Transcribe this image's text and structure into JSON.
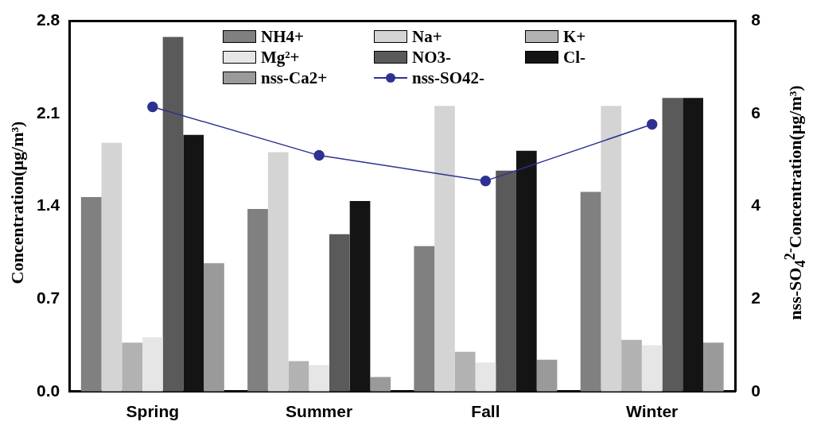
{
  "chart_data": {
    "type": "bar",
    "categories": [
      "Spring",
      "Summer",
      "Fall",
      "Winter"
    ],
    "ylabel": "Concentration(μg/m³)",
    "y2label": "nss-SO$_{4}$$^{2-}$Concentration(μg/m³)",
    "ylim": [
      0,
      2.8
    ],
    "yticks": [
      {
        "value": 0,
        "label": "0.0"
      },
      2.1,
      1.4,
      0.7,
      2.8
    ],
    "y2lim": [
      0,
      8
    ],
    "y2ticks": [
      0,
      2,
      4,
      6,
      8
    ],
    "grid": false,
    "legend": "top",
    "marker": "circle",
    "line_style": "solid",
    "series": [
      {
        "name": "NH4+",
        "color": "#808080",
        "values": [
          1.47,
          1.38,
          1.1,
          1.51
        ]
      },
      {
        "name": "Na+",
        "color": "#d4d4d4",
        "values": [
          1.88,
          1.81,
          2.16,
          2.16
        ]
      },
      {
        "name": "K+",
        "color": "#b2b2b2",
        "values": [
          0.37,
          0.23,
          0.3,
          0.39
        ]
      },
      {
        "name": "Mg²+",
        "color": "#e6e6e6",
        "values": [
          0.41,
          0.2,
          0.22,
          0.35
        ]
      },
      {
        "name": "NO3-",
        "color": "#5a5a5a",
        "values": [
          2.68,
          1.19,
          1.67,
          2.22
        ]
      },
      {
        "name": "Cl-",
        "color": "#141414",
        "values": [
          1.94,
          1.44,
          1.82,
          2.22
        ]
      },
      {
        "name": "nss-Ca2+",
        "color": "#9a9a9a",
        "values": [
          0.97,
          0.11,
          0.24,
          0.37
        ]
      },
      {
        "name": "nss-SO42-",
        "type": "line",
        "axis": "y2",
        "color": "#2e3192",
        "values": [
          6.15,
          5.1,
          4.55,
          5.77
        ]
      }
    ]
  }
}
